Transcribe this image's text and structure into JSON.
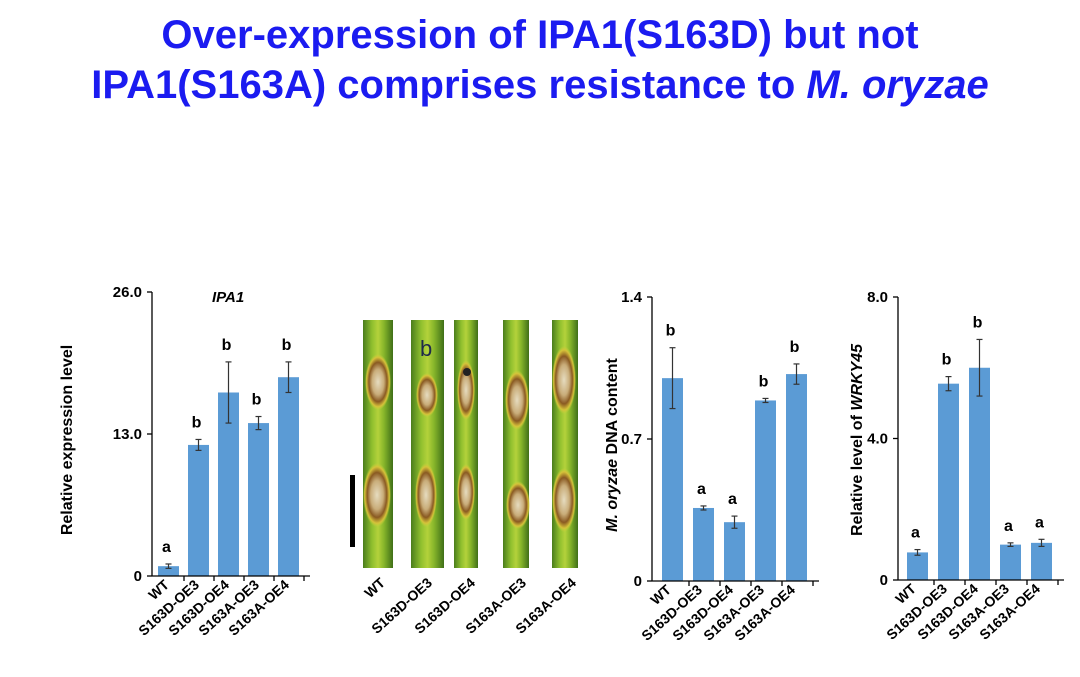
{
  "title": {
    "line1": "Over-expression of IPA1(S163D) but not",
    "line2_prefix": "IPA1(S163A) comprises resistance to ",
    "line2_italic": "M. oryzae"
  },
  "colors": {
    "title": "#1b1bf0",
    "bar": "#5b9bd5"
  },
  "chart_data": [
    {
      "type": "bar",
      "title": "IPA1",
      "ylabel": "Relative expression level",
      "ylim": [
        0,
        26
      ],
      "yticks": [
        "0",
        "13.0",
        "26.0"
      ],
      "categories": [
        "WT",
        "S163D-OE3",
        "S163D-OE4",
        "S163A-OE3",
        "S163A-OE4"
      ],
      "values": [
        0.9,
        12.0,
        16.8,
        14.0,
        18.2
      ],
      "errors": [
        0.2,
        0.5,
        2.8,
        0.6,
        1.4
      ],
      "significance": [
        "a",
        "b",
        "b",
        "b",
        "b"
      ]
    },
    {
      "type": "bar",
      "title": "",
      "ylabel_italic": "M. oryzae",
      "ylabel_rest": " DNA content",
      "ylim": [
        0,
        1.4
      ],
      "yticks": [
        "0",
        "0.7",
        "1.4"
      ],
      "categories": [
        "WT",
        "S163D-OE3",
        "S163D-OE4",
        "S163A-OE3",
        "S163A-OE4"
      ],
      "values": [
        1.0,
        0.36,
        0.29,
        0.89,
        1.02
      ],
      "errors": [
        0.15,
        0.01,
        0.03,
        0.01,
        0.05
      ],
      "significance": [
        "b",
        "a",
        "a",
        "b",
        "b"
      ]
    },
    {
      "type": "bar",
      "title": "",
      "ylabel_rest": "Relative level of ",
      "ylabel_italic": "WRKY45",
      "ylim": [
        0,
        8
      ],
      "yticks": [
        "0",
        "4.0",
        "8.0"
      ],
      "categories": [
        "WT",
        "S163D-OE3",
        "S163D-OE4",
        "S163A-OE3",
        "S163A-OE4"
      ],
      "values": [
        0.78,
        5.55,
        6.0,
        1.0,
        1.05
      ],
      "errors": [
        0.08,
        0.2,
        0.8,
        0.05,
        0.1
      ],
      "significance": [
        "a",
        "b",
        "b",
        "a",
        "a"
      ]
    }
  ],
  "leaf_panel": {
    "labels": [
      "WT",
      "S163D-OE3",
      "S163D-OE4",
      "S163A-OE3",
      "S163A-OE4"
    ]
  }
}
